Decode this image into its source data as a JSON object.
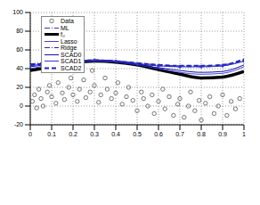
{
  "chart_data": {
    "type": "line",
    "xlim": [
      0,
      1
    ],
    "xticks": [
      0,
      0.1,
      0.2,
      0.3,
      0.4,
      0.5,
      0.6,
      0.7,
      0.8,
      0.9,
      1
    ],
    "ylim": [
      -20,
      100
    ],
    "yticks": [
      -20,
      0,
      20,
      40,
      60,
      80,
      100
    ],
    "grid": true,
    "legend": "top-left",
    "x": [
      0,
      0.1,
      0.2,
      0.3,
      0.4,
      0.5,
      0.6,
      0.7,
      0.8,
      0.9,
      1
    ],
    "series": [
      {
        "name": "Data",
        "type": "scatter",
        "marker": "circle",
        "color": "#555555",
        "x": [
          0.01,
          0.02,
          0.03,
          0.04,
          0.05,
          0.06,
          0.08,
          0.09,
          0.1,
          0.12,
          0.13,
          0.15,
          0.16,
          0.18,
          0.19,
          0.2,
          0.22,
          0.23,
          0.25,
          0.26,
          0.28,
          0.29,
          0.3,
          0.32,
          0.33,
          0.35,
          0.36,
          0.38,
          0.4,
          0.41,
          0.43,
          0.45,
          0.46,
          0.48,
          0.5,
          0.52,
          0.53,
          0.55,
          0.57,
          0.58,
          0.6,
          0.62,
          0.63,
          0.65,
          0.67,
          0.69,
          0.7,
          0.72,
          0.74,
          0.75,
          0.77,
          0.79,
          0.8,
          0.82,
          0.84,
          0.86,
          0.88,
          0.9,
          0.92,
          0.94,
          0.96,
          0.98
        ],
        "values": [
          5,
          12,
          -2,
          18,
          8,
          0,
          15,
          22,
          10,
          3,
          25,
          14,
          7,
          20,
          30,
          12,
          5,
          18,
          28,
          9,
          15,
          38,
          22,
          4,
          12,
          30,
          18,
          8,
          14,
          25,
          2,
          10,
          20,
          6,
          -5,
          15,
          8,
          0,
          12,
          -8,
          5,
          18,
          -3,
          10,
          -10,
          2,
          8,
          -12,
          0,
          15,
          -5,
          6,
          -15,
          3,
          10,
          -8,
          0,
          12,
          -10,
          5,
          -3,
          8
        ]
      },
      {
        "name": "ML",
        "color": "#3333cc",
        "line_style": "dashdot",
        "values": [
          44,
          46,
          48,
          49,
          48,
          45,
          43,
          42,
          42,
          43,
          49
        ]
      },
      {
        "name": "f₀",
        "color": "#000000",
        "line_style": "solid",
        "values": [
          38,
          42,
          46,
          48,
          47,
          44,
          39,
          34,
          30,
          31,
          37
        ]
      },
      {
        "name": "Lasso",
        "color": "#4444dd",
        "line_style": "solid",
        "values": [
          40,
          44,
          47,
          48,
          47,
          44,
          40,
          36,
          34,
          35,
          42
        ]
      },
      {
        "name": "Ridge",
        "color": "#2222bb",
        "line_style": "dashdot",
        "values": [
          45,
          47,
          49,
          49,
          48,
          46,
          44,
          43,
          43,
          44,
          49
        ]
      },
      {
        "name": "SCAD0",
        "color": "#1111aa",
        "line_style": "solid",
        "values": [
          42,
          45,
          48,
          49,
          47,
          44,
          41,
          38,
          36,
          37,
          44
        ]
      },
      {
        "name": "SCAD1",
        "color": "#3333cc",
        "line_style": "solid",
        "marker": "dot",
        "values": [
          43,
          46,
          48,
          49,
          48,
          45,
          43,
          42,
          42,
          43,
          48
        ]
      },
      {
        "name": "SCAD2",
        "color": "#2222bb",
        "line_style": "dashed",
        "values": [
          44,
          46,
          48,
          49,
          48,
          46,
          44,
          43,
          43,
          44,
          50
        ]
      }
    ]
  }
}
